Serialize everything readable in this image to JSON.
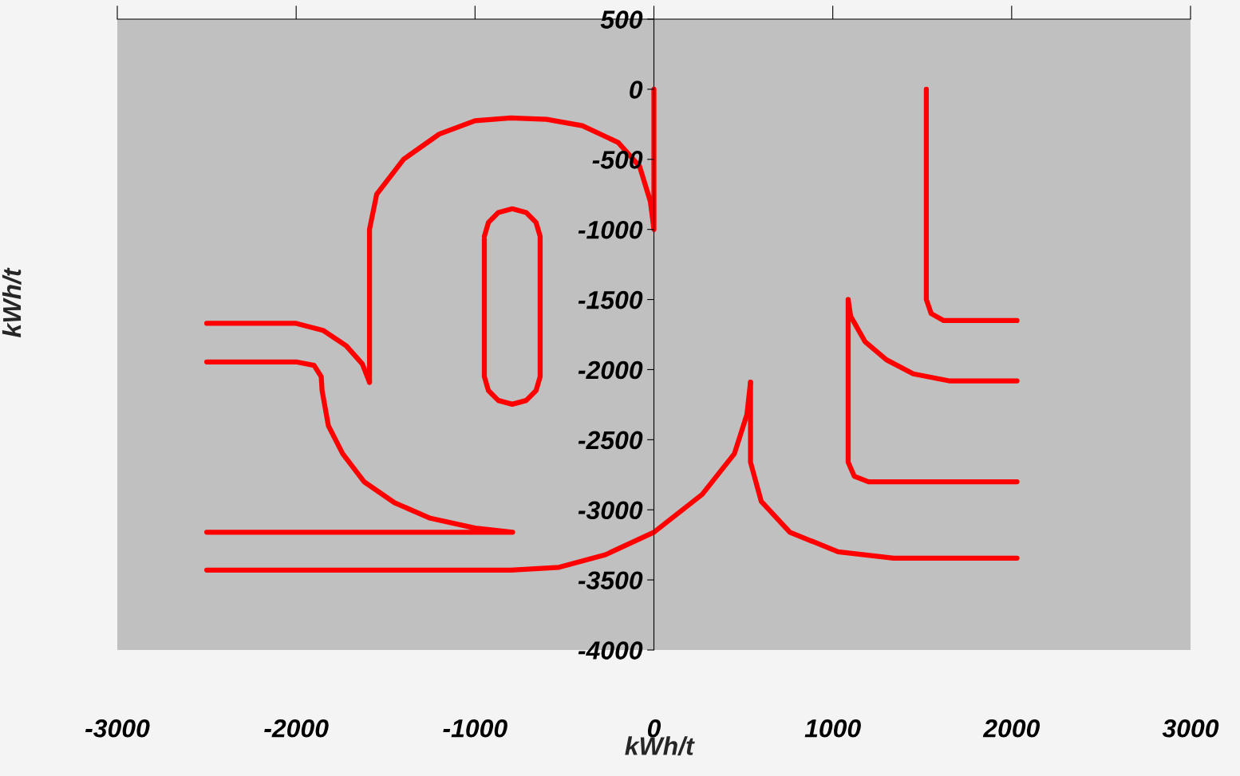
{
  "chart_data": {
    "type": "line",
    "xlabel": "kWh/t",
    "ylabel": "kWh/t",
    "xlim": [
      -3000,
      3000
    ],
    "xticks": [
      -3000,
      -2000,
      -1000,
      0,
      1000,
      2000,
      3000
    ],
    "ylim": [
      -4000,
      500
    ],
    "yticks": [
      -4000,
      -3500,
      -3000,
      -2500,
      -2000,
      -1500,
      -1000,
      -500,
      0,
      500
    ],
    "grid": false,
    "legend": false,
    "marker": "none",
    "line_style": "solid",
    "series": [
      {
        "color": "#ff0000",
        "x": [
          0,
          0,
          -20,
          -80,
          -200,
          -400,
          -600,
          -800,
          -1000,
          -1200,
          -1400,
          -1550,
          -1590,
          -1590
        ],
        "values": [
          0,
          -1000,
          -800,
          -550,
          -380,
          -260,
          -215,
          -205,
          -225,
          -320,
          -500,
          -750,
          -1000,
          -2090
        ]
      },
      {
        "color": "#ff0000",
        "x": [
          -2500,
          -2000,
          -1850,
          -1720,
          -1630,
          -1590
        ],
        "values": [
          -1670,
          -1670,
          -1720,
          -1830,
          -1960,
          -2090
        ]
      },
      {
        "color": "#ff0000",
        "x": [
          -2500,
          -2000,
          -1900,
          -1860,
          -1855,
          -1820,
          -1740,
          -1620,
          -1450,
          -1250,
          -1000,
          -790,
          -2500
        ],
        "values": [
          -1945,
          -1945,
          -1970,
          -2050,
          -2150,
          -2400,
          -2600,
          -2800,
          -2950,
          -3060,
          -3130,
          -3160,
          -3160
        ]
      },
      {
        "color": "#ff0000",
        "x": [
          -948,
          -925,
          -870,
          -792,
          -714,
          -659,
          -636,
          -636,
          -659,
          -714,
          -792,
          -870,
          -925,
          -948,
          -948
        ],
        "values": [
          -1050,
          -950,
          -880,
          -853,
          -880,
          -950,
          -1050,
          -2050,
          -2150,
          -2220,
          -2247,
          -2220,
          -2150,
          -2050,
          -1070
        ]
      },
      {
        "color": "#ff0000",
        "x": [
          -2500,
          -800,
          -530,
          -270,
          0,
          270,
          450,
          520,
          540
        ],
        "values": [
          -3430,
          -3430,
          -3410,
          -3320,
          -3160,
          -2890,
          -2600,
          -2320,
          -2090
        ]
      },
      {
        "color": "#ff0000",
        "x": [
          540,
          540,
          600,
          760,
          1030,
          1340,
          2030
        ],
        "values": [
          -2090,
          -2660,
          -2940,
          -3160,
          -3300,
          -3345,
          -3345
        ]
      },
      {
        "color": "#ff0000",
        "x": [
          1523,
          1523,
          1550,
          1620,
          2030
        ],
        "values": [
          0,
          -1500,
          -1600,
          -1650,
          -1650
        ]
      },
      {
        "color": "#ff0000",
        "x": [
          1086,
          1100,
          1180,
          1300,
          1450,
          1650,
          2030
        ],
        "values": [
          -1500,
          -1620,
          -1800,
          -1930,
          -2030,
          -2080,
          -2080
        ]
      },
      {
        "color": "#ff0000",
        "x": [
          1086,
          1086,
          1120,
          1200,
          2030
        ],
        "values": [
          -1500,
          -2660,
          -2760,
          -2800,
          -2800
        ]
      }
    ]
  }
}
